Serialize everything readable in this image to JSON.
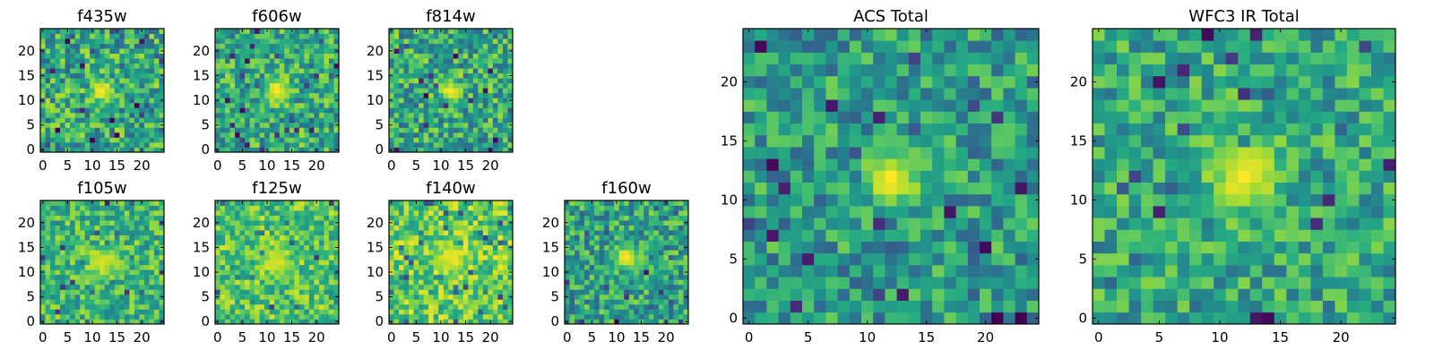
{
  "figure": {
    "background": "#ffffff"
  },
  "chart_data": [
    {
      "type": "heatmap",
      "title": "f435w",
      "grid_size": 25,
      "colormap": "viridis",
      "xticks": [
        "0",
        "5",
        "10",
        "15",
        "20"
      ],
      "yticks": [
        "0",
        "5",
        "10",
        "15",
        "20"
      ],
      "xlim": [
        -0.5,
        24.5
      ],
      "ylim": [
        -0.5,
        24.5
      ],
      "grid": false,
      "peak": {
        "x": 12,
        "y": 12
      },
      "peak_sigma": 1.6,
      "peak_level": 1.0,
      "background_level": 0.6,
      "noise": 0.18,
      "seed": 11
    },
    {
      "type": "heatmap",
      "title": "f606w",
      "grid_size": 25,
      "colormap": "viridis",
      "xticks": [
        "0",
        "5",
        "10",
        "15",
        "20"
      ],
      "yticks": [
        "0",
        "5",
        "10",
        "15",
        "20"
      ],
      "xlim": [
        -0.5,
        24.5
      ],
      "ylim": [
        -0.5,
        24.5
      ],
      "grid": false,
      "peak": {
        "x": 12,
        "y": 12
      },
      "peak_sigma": 1.7,
      "peak_level": 1.0,
      "background_level": 0.62,
      "noise": 0.16,
      "seed": 23
    },
    {
      "type": "heatmap",
      "title": "f814w",
      "grid_size": 25,
      "colormap": "viridis",
      "xticks": [
        "0",
        "5",
        "10",
        "15",
        "20"
      ],
      "yticks": [
        "0",
        "5",
        "10",
        "15",
        "20"
      ],
      "xlim": [
        -0.5,
        24.5
      ],
      "ylim": [
        -0.5,
        24.5
      ],
      "grid": false,
      "peak": {
        "x": 12,
        "y": 12
      },
      "peak_sigma": 1.6,
      "peak_level": 1.0,
      "background_level": 0.6,
      "noise": 0.17,
      "seed": 37
    },
    {
      "type": "heatmap",
      "title": "f105w",
      "grid_size": 25,
      "colormap": "viridis",
      "xticks": [
        "0",
        "5",
        "10",
        "15",
        "20"
      ],
      "yticks": [
        "0",
        "5",
        "10",
        "15",
        "20"
      ],
      "xlim": [
        -0.5,
        24.5
      ],
      "ylim": [
        -0.5,
        24.5
      ],
      "grid": false,
      "peak": {
        "x": 12,
        "y": 12
      },
      "peak_sigma": 2.2,
      "peak_level": 0.95,
      "background_level": 0.66,
      "noise": 0.14,
      "seed": 41
    },
    {
      "type": "heatmap",
      "title": "f125w",
      "grid_size": 25,
      "colormap": "viridis",
      "xticks": [
        "0",
        "5",
        "10",
        "15",
        "20"
      ],
      "yticks": [
        "0",
        "5",
        "10",
        "15",
        "20"
      ],
      "xlim": [
        -0.5,
        24.5
      ],
      "ylim": [
        -0.5,
        24.5
      ],
      "grid": false,
      "peak": {
        "x": 12,
        "y": 12
      },
      "peak_sigma": 2.2,
      "peak_level": 0.95,
      "background_level": 0.72,
      "noise": 0.14,
      "seed": 53
    },
    {
      "type": "heatmap",
      "title": "f140w",
      "grid_size": 25,
      "colormap": "viridis",
      "xticks": [
        "0",
        "5",
        "10",
        "15",
        "20"
      ],
      "yticks": [
        "0",
        "5",
        "10",
        "15",
        "20"
      ],
      "xlim": [
        -0.5,
        24.5
      ],
      "ylim": [
        -0.5,
        24.5
      ],
      "grid": false,
      "peak": {
        "x": 12,
        "y": 13
      },
      "peak_sigma": 2.4,
      "peak_level": 0.97,
      "background_level": 0.76,
      "noise": 0.14,
      "seed": 67
    },
    {
      "type": "heatmap",
      "title": "f160w",
      "grid_size": 25,
      "colormap": "viridis",
      "xticks": [
        "0",
        "5",
        "10",
        "15",
        "20"
      ],
      "yticks": [
        "0",
        "5",
        "10",
        "15",
        "20"
      ],
      "xlim": [
        -0.5,
        24.5
      ],
      "ylim": [
        -0.5,
        24.5
      ],
      "grid": false,
      "peak": {
        "x": 12,
        "y": 13
      },
      "peak_sigma": 1.8,
      "peak_level": 1.0,
      "background_level": 0.58,
      "noise": 0.16,
      "seed": 79
    },
    {
      "type": "heatmap",
      "title": "ACS Total",
      "grid_size": 25,
      "colormap": "viridis",
      "xticks": [
        "0",
        "5",
        "10",
        "15",
        "20"
      ],
      "yticks": [
        "0",
        "5",
        "10",
        "15",
        "20"
      ],
      "xlim": [
        -0.5,
        24.5
      ],
      "ylim": [
        -0.5,
        24.5
      ],
      "grid": false,
      "peak": {
        "x": 12,
        "y": 12
      },
      "peak_sigma": 1.6,
      "peak_level": 1.0,
      "background_level": 0.55,
      "noise": 0.15,
      "seed": 83
    },
    {
      "type": "heatmap",
      "title": "WFC3 IR Total",
      "grid_size": 25,
      "colormap": "viridis",
      "xticks": [
        "0",
        "5",
        "10",
        "15",
        "20"
      ],
      "yticks": [
        "0",
        "5",
        "10",
        "15",
        "20"
      ],
      "xlim": [
        -0.5,
        24.5
      ],
      "ylim": [
        -0.5,
        24.5
      ],
      "grid": false,
      "peak": {
        "x": 12,
        "y": 12
      },
      "peak_sigma": 2.0,
      "peak_level": 1.0,
      "background_level": 0.6,
      "noise": 0.14,
      "seed": 97
    }
  ]
}
